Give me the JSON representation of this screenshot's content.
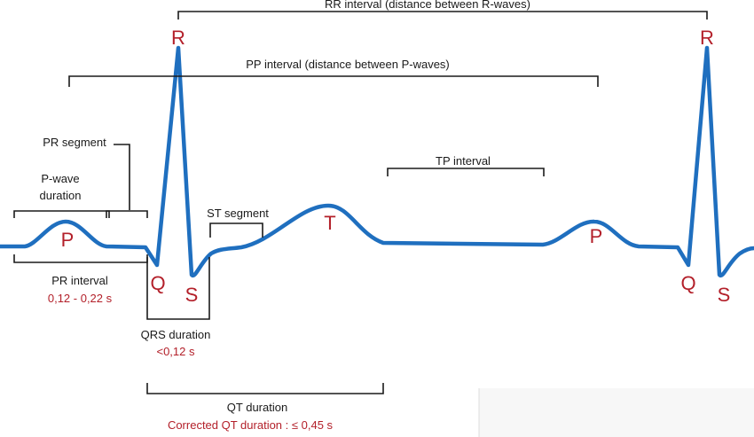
{
  "waves": {
    "p1": "P",
    "q1": "Q",
    "r1": "R",
    "s1": "S",
    "t1": "T",
    "p2": "P",
    "q2": "Q",
    "r2": "R",
    "s2": "S"
  },
  "labels": {
    "rr_interval": "RR interval (distance between R-waves)",
    "pp_interval": "PP interval (distance between P-waves)",
    "pr_segment": "PR segment",
    "p_wave_duration_line1": "P-wave",
    "p_wave_duration_line2": "duration",
    "st_segment": "ST segment",
    "tp_interval": "TP interval",
    "pr_interval": "PR interval",
    "pr_interval_value": "0,12 - 0,22 s",
    "qrs_duration": "QRS duration",
    "qrs_duration_value": "<0,12 s",
    "qt_duration": "QT duration",
    "qt_corrected": "Corrected QT duration  : ≤ 0,45 s"
  },
  "colors": {
    "trace": "#1f6fbf",
    "wave_label": "#b3202a",
    "text": "#1a1a1a"
  }
}
